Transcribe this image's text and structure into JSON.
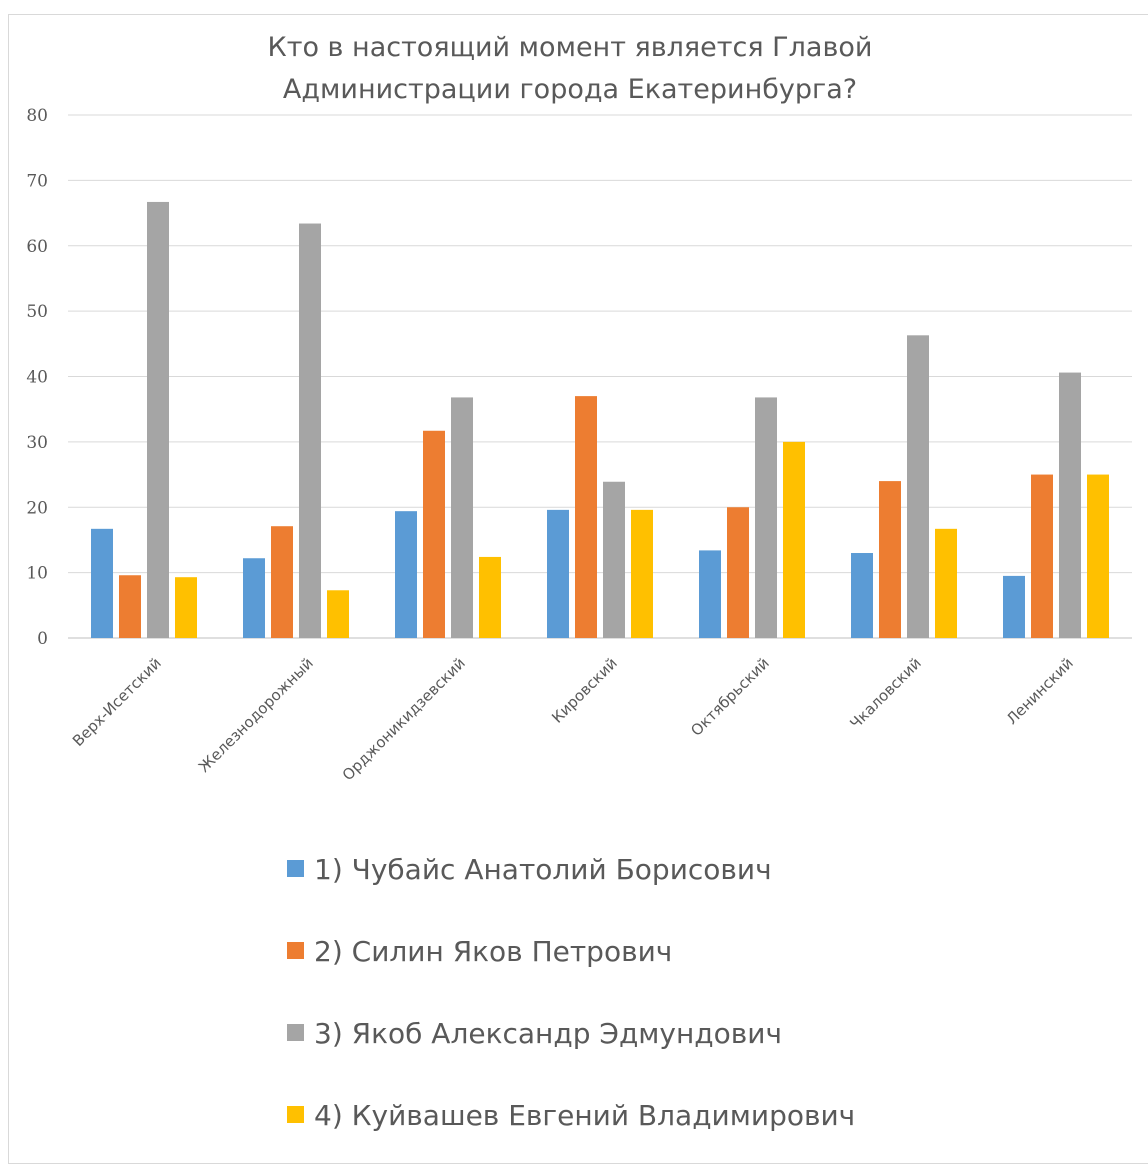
{
  "chart_data": {
    "type": "bar",
    "title_lines": [
      "Кто в настоящий момент является Главой",
      "Администрации города Екатеринбурга?"
    ],
    "categories": [
      "Верх-Исетский",
      "Железнодорожный",
      "Орджоникидзевский",
      "Кировский",
      "Октябрьский",
      "Чкаловский",
      "Ленинский"
    ],
    "series": [
      {
        "name": "1) Чубайс Анатолий Борисович",
        "color": "#5B9BD5",
        "values": [
          16.7,
          12.2,
          19.4,
          19.6,
          13.4,
          13.0,
          9.5
        ]
      },
      {
        "name": "2) Силин Яков Петрович",
        "color": "#ED7D31",
        "values": [
          9.6,
          17.1,
          31.7,
          37.0,
          20.0,
          24.0,
          25.0
        ]
      },
      {
        "name": "3) Якоб Александр Эдмундович",
        "color": "#A5A5A5",
        "values": [
          66.7,
          63.4,
          36.8,
          23.9,
          36.8,
          46.3,
          40.6
        ]
      },
      {
        "name": "4) Куйвашев Евгений Владимирович",
        "color": "#FFC000",
        "values": [
          9.3,
          7.3,
          12.4,
          19.6,
          30.0,
          16.7,
          25.0
        ]
      }
    ],
    "ylim": [
      0,
      80
    ],
    "yticks": [
      0,
      10,
      20,
      30,
      40,
      50,
      60,
      70,
      80
    ],
    "grid": true,
    "legend_position": "bottom"
  }
}
